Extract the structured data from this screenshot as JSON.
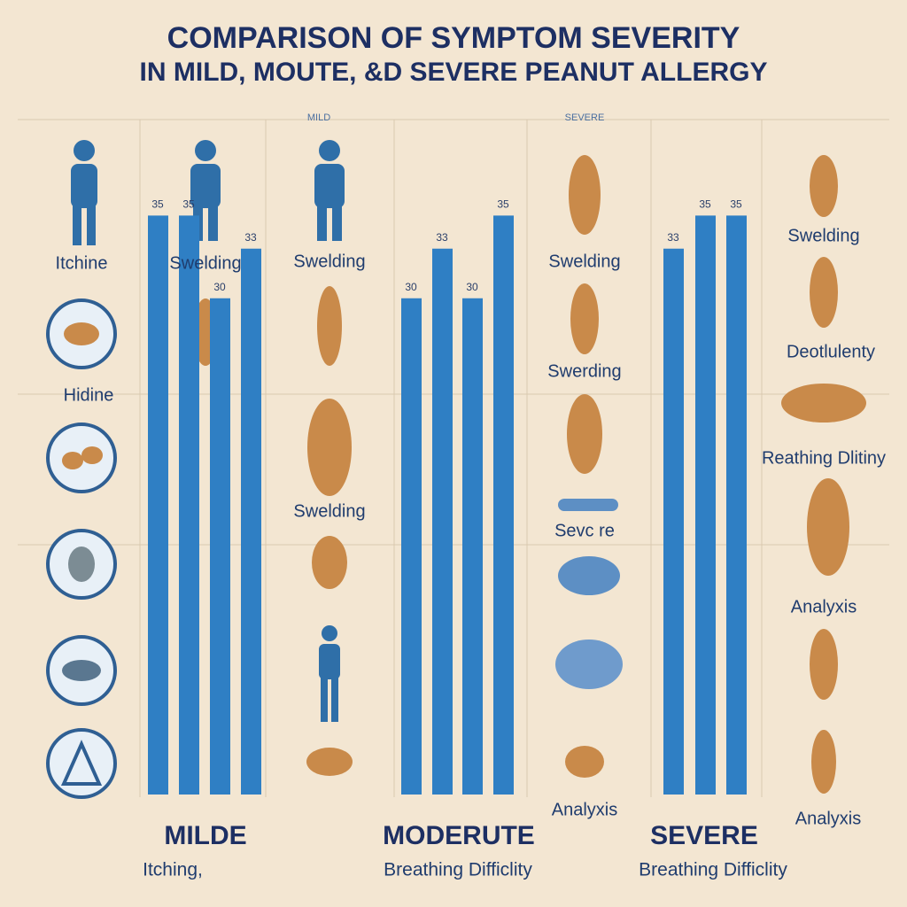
{
  "chart_data": {
    "type": "bar",
    "title": "COMPARISON OF SYMPTOM SEVERITY",
    "subtitle": "IN MILD, MOUTE, &D SEVERE PEANUT ALLERGY",
    "headers": [
      "MILD",
      "SEVERE"
    ],
    "color": "#2f7fc4",
    "ylim": [
      0,
      40
    ],
    "groups": [
      {
        "name": "MILDE",
        "caption": "Itching,",
        "values": [
          35,
          35,
          30,
          33
        ]
      },
      {
        "name": "MODERUTE",
        "caption": "Breathing Difficlity",
        "values": [
          30,
          33,
          30,
          35
        ]
      },
      {
        "name": "SEVERE",
        "caption": "Breathing Difficlity",
        "values": [
          33,
          35,
          35
        ]
      }
    ],
    "annotations": [
      "Itchine",
      "Swelding",
      "Swelding",
      "Swelding",
      "Hidine",
      "Swelding",
      "Swerding",
      "Sevc re",
      "Swelding",
      "Deotlulenty",
      "Reathing Dlitiny",
      "Analyxis",
      "Analyxis",
      "Analyxis"
    ]
  }
}
